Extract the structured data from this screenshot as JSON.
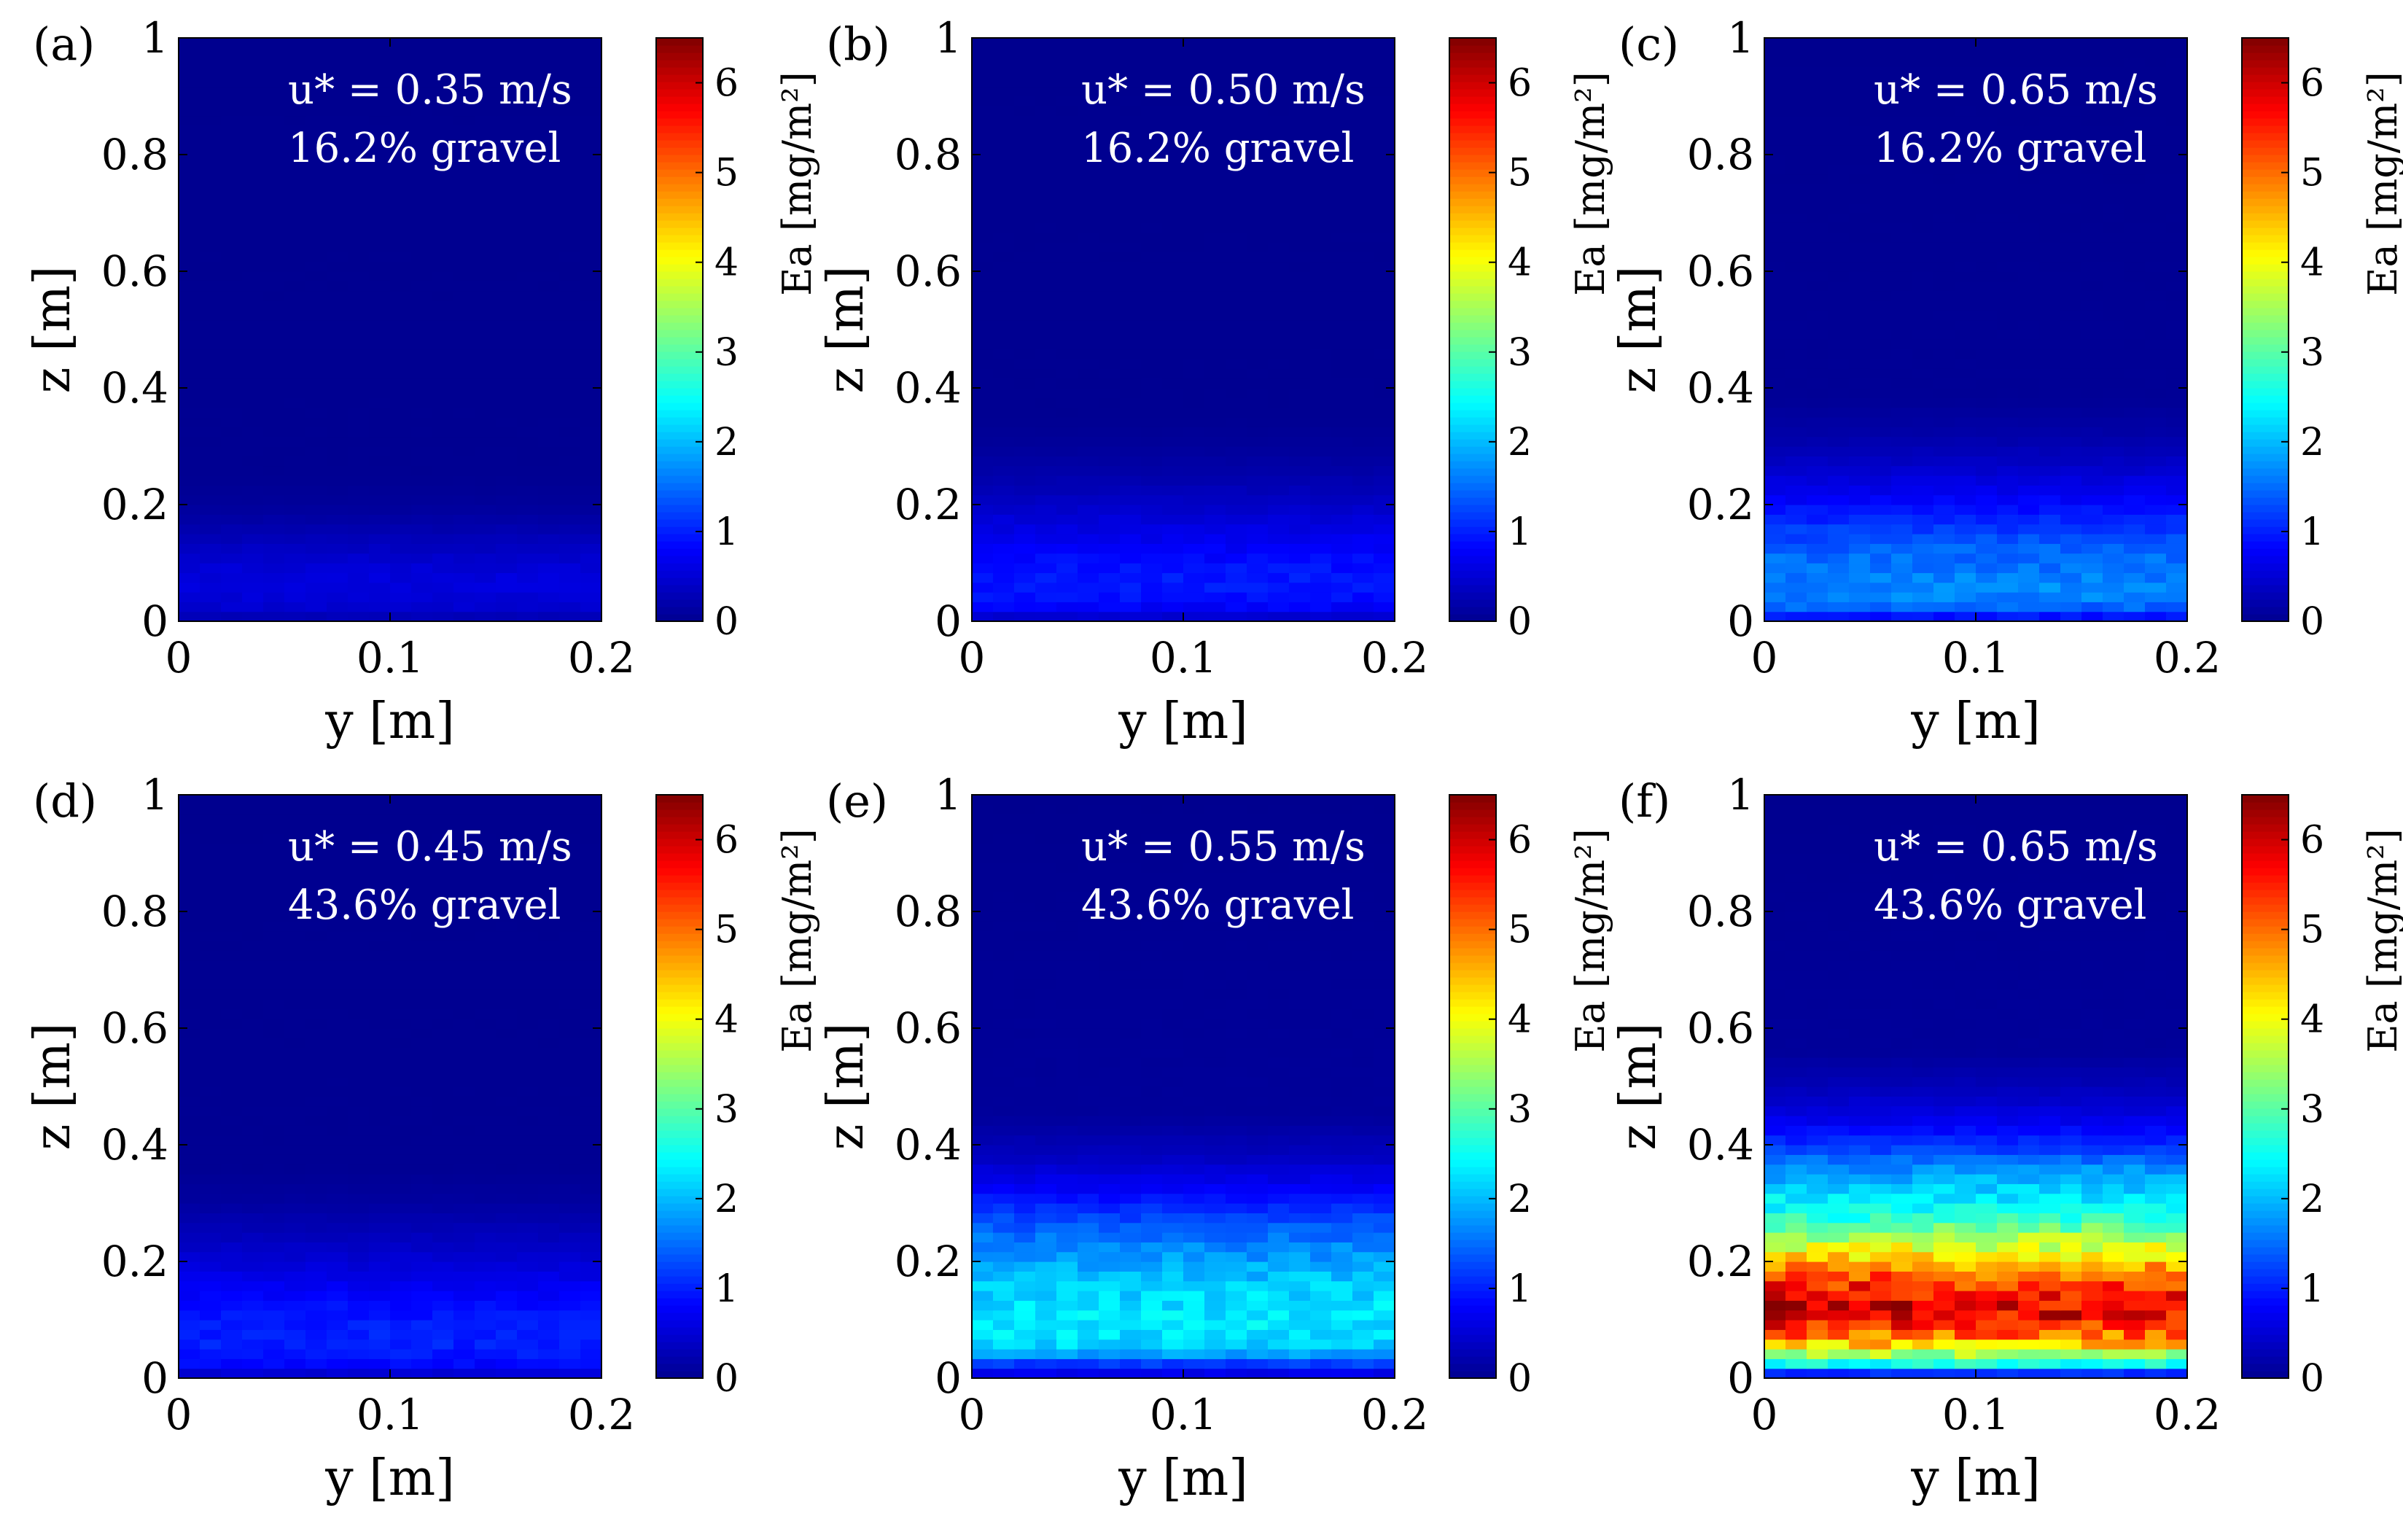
{
  "figure": {
    "layout": "2x3 grid of heatmaps, each with its own colorbar"
  },
  "colormap": {
    "name": "jet",
    "stops": [
      "#00008f",
      "#0000ff",
      "#0080ff",
      "#00ffff",
      "#80ff80",
      "#ffff00",
      "#ff8000",
      "#ff0000",
      "#800000"
    ]
  },
  "chart_data": [
    {
      "id": "a",
      "type": "heatmap",
      "panel_label": "(a)",
      "annotation_line1": "u* = 0.35 m/s",
      "annotation_line2": "16.2% gravel",
      "ustar": 0.35,
      "gravel_pct": 16.2,
      "xlabel": "y [m]",
      "ylabel": "z [m]",
      "xlim": [
        0,
        0.2
      ],
      "ylim": [
        0,
        1
      ],
      "xticks": [
        "0",
        "0.1",
        "0.2"
      ],
      "yticks": [
        "0",
        "0.2",
        "0.4",
        "0.6",
        "0.8",
        "1"
      ],
      "colorbar_label": "Ea [mg/m²]",
      "clim": [
        0,
        6.5
      ],
      "colorbar_ticks": [
        "0",
        "1",
        "2",
        "3",
        "4",
        "5",
        "6"
      ],
      "profile_z": [
        0.0,
        0.02,
        0.05,
        0.08,
        0.11,
        0.14,
        0.17,
        0.2,
        0.25,
        1.0
      ],
      "profile_Ea": [
        0.2,
        0.45,
        0.55,
        0.55,
        0.45,
        0.3,
        0.18,
        0.08,
        0.02,
        0.0
      ]
    },
    {
      "id": "b",
      "type": "heatmap",
      "panel_label": "(b)",
      "annotation_line1": "u* = 0.50 m/s",
      "annotation_line2": "16.2% gravel",
      "ustar": 0.5,
      "gravel_pct": 16.2,
      "xlabel": "y [m]",
      "ylabel": "z [m]",
      "xlim": [
        0,
        0.2
      ],
      "ylim": [
        0,
        1
      ],
      "xticks": [
        "0",
        "0.1",
        "0.2"
      ],
      "yticks": [
        "0",
        "0.2",
        "0.4",
        "0.6",
        "0.8",
        "1"
      ],
      "colorbar_label": "Ea [mg/m²]",
      "clim": [
        0,
        6.5
      ],
      "colorbar_ticks": [
        "0",
        "1",
        "2",
        "3",
        "4",
        "5",
        "6"
      ],
      "profile_z": [
        0.0,
        0.02,
        0.05,
        0.08,
        0.12,
        0.16,
        0.2,
        0.25,
        0.3,
        0.35,
        1.0
      ],
      "profile_Ea": [
        0.3,
        0.75,
        0.95,
        0.95,
        0.8,
        0.6,
        0.4,
        0.2,
        0.08,
        0.02,
        0.0
      ]
    },
    {
      "id": "c",
      "type": "heatmap",
      "panel_label": "(c)",
      "annotation_line1": "u* = 0.65 m/s",
      "annotation_line2": "16.2% gravel",
      "ustar": 0.65,
      "gravel_pct": 16.2,
      "xlabel": "y [m]",
      "ylabel": "z [m]",
      "xlim": [
        0,
        0.2
      ],
      "ylim": [
        0,
        1
      ],
      "xticks": [
        "0",
        "0.1",
        "0.2"
      ],
      "yticks": [
        "0",
        "0.2",
        "0.4",
        "0.6",
        "0.8",
        "1"
      ],
      "colorbar_label": "Ea [mg/m²]",
      "clim": [
        0,
        6.5
      ],
      "colorbar_ticks": [
        "0",
        "1",
        "2",
        "3",
        "4",
        "5",
        "6"
      ],
      "profile_z": [
        0.0,
        0.02,
        0.05,
        0.08,
        0.11,
        0.14,
        0.18,
        0.22,
        0.27,
        0.32,
        0.38,
        1.0
      ],
      "profile_Ea": [
        0.6,
        1.4,
        1.7,
        1.6,
        1.5,
        1.3,
        1.0,
        0.7,
        0.4,
        0.18,
        0.05,
        0.0
      ]
    },
    {
      "id": "d",
      "type": "heatmap",
      "panel_label": "(d)",
      "annotation_line1": "u* = 0.45 m/s",
      "annotation_line2": "43.6% gravel",
      "ustar": 0.45,
      "gravel_pct": 43.6,
      "xlabel": "y [m]",
      "ylabel": "z [m]",
      "xlim": [
        0,
        0.2
      ],
      "ylim": [
        0,
        1
      ],
      "xticks": [
        "0",
        "0.1",
        "0.2"
      ],
      "yticks": [
        "0",
        "0.2",
        "0.4",
        "0.6",
        "0.8",
        "1"
      ],
      "colorbar_label": "Ea [mg/m²]",
      "clim": [
        0,
        6.5
      ],
      "colorbar_ticks": [
        "0",
        "1",
        "2",
        "3",
        "4",
        "5",
        "6"
      ],
      "profile_z": [
        0.0,
        0.02,
        0.05,
        0.08,
        0.12,
        0.16,
        0.2,
        0.25,
        0.3,
        0.36,
        1.0
      ],
      "profile_Ea": [
        0.3,
        0.8,
        1.0,
        1.0,
        0.9,
        0.7,
        0.5,
        0.3,
        0.12,
        0.03,
        0.0
      ]
    },
    {
      "id": "e",
      "type": "heatmap",
      "panel_label": "(e)",
      "annotation_line1": "u* = 0.55 m/s",
      "annotation_line2": "43.6% gravel",
      "ustar": 0.55,
      "gravel_pct": 43.6,
      "xlabel": "y [m]",
      "ylabel": "z [m]",
      "xlim": [
        0,
        0.2
      ],
      "ylim": [
        0,
        1
      ],
      "xticks": [
        "0",
        "0.1",
        "0.2"
      ],
      "yticks": [
        "0",
        "0.2",
        "0.4",
        "0.6",
        "0.8",
        "1"
      ],
      "colorbar_label": "Ea [mg/m²]",
      "clim": [
        0,
        6.5
      ],
      "colorbar_ticks": [
        "0",
        "1",
        "2",
        "3",
        "4",
        "5",
        "6"
      ],
      "profile_z": [
        0.0,
        0.02,
        0.04,
        0.06,
        0.1,
        0.14,
        0.18,
        0.22,
        0.27,
        0.32,
        0.38,
        0.45,
        1.0
      ],
      "profile_Ea": [
        0.4,
        1.0,
        1.8,
        2.2,
        2.3,
        2.2,
        2.0,
        1.7,
        1.3,
        0.8,
        0.35,
        0.08,
        0.0
      ]
    },
    {
      "id": "f",
      "type": "heatmap",
      "panel_label": "(f)",
      "annotation_line1": "u* = 0.65 m/s",
      "annotation_line2": "43.6% gravel",
      "ustar": 0.65,
      "gravel_pct": 43.6,
      "xlabel": "y [m]",
      "ylabel": "z [m]",
      "xlim": [
        0,
        0.2
      ],
      "ylim": [
        0,
        1
      ],
      "xticks": [
        "0",
        "0.1",
        "0.2"
      ],
      "yticks": [
        "0",
        "0.2",
        "0.4",
        "0.6",
        "0.8",
        "1"
      ],
      "colorbar_label": "Ea [mg/m²]",
      "clim": [
        0,
        6.5
      ],
      "colorbar_ticks": [
        "0",
        "1",
        "2",
        "3",
        "4",
        "5",
        "6"
      ],
      "profile_z": [
        0.0,
        0.01,
        0.02,
        0.04,
        0.06,
        0.09,
        0.12,
        0.15,
        0.18,
        0.21,
        0.24,
        0.28,
        0.32,
        0.36,
        0.4,
        0.45,
        0.5,
        0.56,
        1.0
      ],
      "profile_Ea": [
        0.5,
        1.2,
        2.3,
        3.4,
        4.5,
        5.5,
        5.9,
        5.6,
        5.0,
        4.2,
        3.5,
        2.6,
        2.2,
        1.7,
        1.1,
        0.6,
        0.3,
        0.08,
        0.0
      ]
    }
  ]
}
